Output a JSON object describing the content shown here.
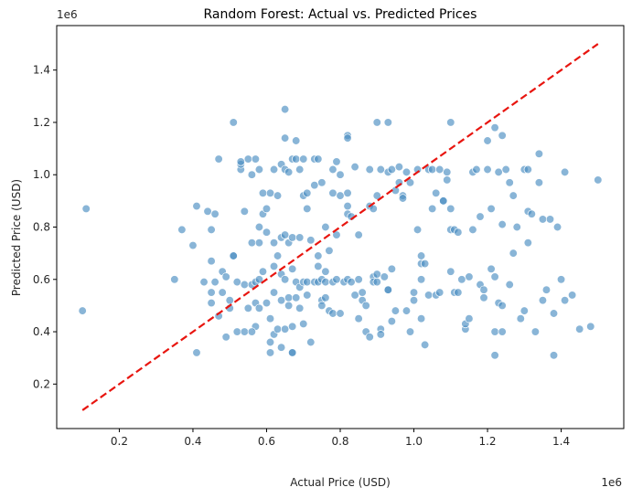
{
  "chart_data": {
    "type": "scatter",
    "title": "Random Forest: Actual vs. Predicted Prices",
    "xlabel": "Actual Price (USD)",
    "ylabel": "Predicted Price (USD)",
    "x_offset_label": "1e6",
    "y_offset_label": "1e6",
    "xlim": [
      0.03,
      1.57
    ],
    "ylim": [
      0.03,
      1.57
    ],
    "x_ticks": [
      0.2,
      0.4,
      0.6,
      0.8,
      1.0,
      1.2,
      1.4
    ],
    "x_tick_labels": [
      "0.2",
      "0.4",
      "0.6",
      "0.8",
      "1.0",
      "1.2",
      "1.4"
    ],
    "y_ticks": [
      0.2,
      0.4,
      0.6,
      0.8,
      1.0,
      1.2,
      1.4
    ],
    "y_tick_labels": [
      "0.2",
      "0.4",
      "0.6",
      "0.8",
      "1.0",
      "1.2",
      "1.4"
    ],
    "grid": false,
    "legend": "none",
    "point_color": "#4a8ec2",
    "line_color": "#e8150f",
    "reference_line": {
      "x": [
        0.1,
        1.5
      ],
      "y": [
        0.1,
        1.5
      ]
    },
    "points": [
      [
        0.1,
        0.48
      ],
      [
        0.11,
        0.87
      ],
      [
        0.35,
        0.6
      ],
      [
        0.37,
        0.79
      ],
      [
        0.4,
        0.73
      ],
      [
        0.41,
        0.32
      ],
      [
        0.41,
        0.88
      ],
      [
        0.43,
        0.59
      ],
      [
        0.44,
        0.86
      ],
      [
        0.45,
        0.79
      ],
      [
        0.45,
        0.67
      ],
      [
        0.45,
        0.55
      ],
      [
        0.45,
        0.51
      ],
      [
        0.46,
        0.85
      ],
      [
        0.46,
        0.59
      ],
      [
        0.47,
        1.06
      ],
      [
        0.47,
        0.46
      ],
      [
        0.48,
        0.55
      ],
      [
        0.48,
        0.63
      ],
      [
        0.49,
        0.61
      ],
      [
        0.49,
        0.38
      ],
      [
        0.5,
        0.52
      ],
      [
        0.5,
        0.49
      ],
      [
        0.51,
        1.2
      ],
      [
        0.51,
        0.69
      ],
      [
        0.51,
        0.69
      ],
      [
        0.52,
        0.59
      ],
      [
        0.52,
        0.4
      ],
      [
        0.53,
        1.02
      ],
      [
        0.53,
        1.04
      ],
      [
        0.53,
        1.05
      ],
      [
        0.54,
        0.86
      ],
      [
        0.54,
        0.58
      ],
      [
        0.54,
        0.4
      ],
      [
        0.55,
        1.06
      ],
      [
        0.55,
        0.49
      ],
      [
        0.56,
        1.0
      ],
      [
        0.56,
        0.74
      ],
      [
        0.56,
        0.58
      ],
      [
        0.57,
        1.06
      ],
      [
        0.57,
        0.51
      ],
      [
        0.57,
        0.42
      ],
      [
        0.57,
        0.59
      ],
      [
        0.58,
        1.02
      ],
      [
        0.58,
        0.8
      ],
      [
        0.58,
        0.74
      ],
      [
        0.58,
        0.6
      ],
      [
        0.58,
        0.49
      ],
      [
        0.59,
        0.93
      ],
      [
        0.59,
        0.85
      ],
      [
        0.59,
        0.63
      ],
      [
        0.6,
        0.87
      ],
      [
        0.6,
        0.78
      ],
      [
        0.6,
        0.51
      ],
      [
        0.61,
        0.93
      ],
      [
        0.61,
        0.45
      ],
      [
        0.61,
        0.32
      ],
      [
        0.61,
        0.36
      ],
      [
        0.62,
        1.02
      ],
      [
        0.62,
        0.74
      ],
      [
        0.62,
        0.65
      ],
      [
        0.62,
        0.55
      ],
      [
        0.62,
        0.39
      ],
      [
        0.63,
        0.92
      ],
      [
        0.63,
        0.69
      ],
      [
        0.63,
        0.41
      ],
      [
        0.64,
        1.04
      ],
      [
        0.64,
        0.76
      ],
      [
        0.64,
        0.62
      ],
      [
        0.64,
        0.52
      ],
      [
        0.64,
        0.34
      ],
      [
        0.65,
        1.25
      ],
      [
        0.65,
        1.14
      ],
      [
        0.65,
        1.02
      ],
      [
        0.65,
        0.77
      ],
      [
        0.65,
        0.6
      ],
      [
        0.65,
        0.41
      ],
      [
        0.66,
        1.01
      ],
      [
        0.66,
        0.74
      ],
      [
        0.66,
        0.53
      ],
      [
        0.66,
        0.5
      ],
      [
        0.67,
        1.06
      ],
      [
        0.67,
        0.76
      ],
      [
        0.67,
        0.64
      ],
      [
        0.67,
        0.42
      ],
      [
        0.67,
        0.32
      ],
      [
        0.68,
        1.13
      ],
      [
        0.68,
        1.06
      ],
      [
        0.68,
        0.59
      ],
      [
        0.68,
        0.53
      ],
      [
        0.69,
        1.02
      ],
      [
        0.69,
        0.76
      ],
      [
        0.69,
        0.57
      ],
      [
        0.69,
        0.49
      ],
      [
        0.7,
        1.06
      ],
      [
        0.7,
        0.92
      ],
      [
        0.7,
        0.59
      ],
      [
        0.7,
        0.43
      ],
      [
        0.71,
        0.93
      ],
      [
        0.71,
        0.87
      ],
      [
        0.71,
        0.59
      ],
      [
        0.71,
        0.54
      ],
      [
        0.72,
        0.36
      ],
      [
        0.72,
        0.75
      ],
      [
        0.73,
        1.06
      ],
      [
        0.73,
        0.96
      ],
      [
        0.73,
        0.59
      ],
      [
        0.74,
        1.06
      ],
      [
        0.74,
        0.69
      ],
      [
        0.74,
        0.65
      ],
      [
        0.74,
        0.59
      ],
      [
        0.75,
        0.97
      ],
      [
        0.75,
        0.6
      ],
      [
        0.75,
        0.52
      ],
      [
        0.75,
        0.5
      ],
      [
        0.76,
        0.8
      ],
      [
        0.76,
        0.63
      ],
      [
        0.76,
        0.59
      ],
      [
        0.76,
        0.53
      ],
      [
        0.77,
        0.71
      ],
      [
        0.77,
        0.48
      ],
      [
        0.78,
        1.02
      ],
      [
        0.78,
        0.93
      ],
      [
        0.78,
        0.59
      ],
      [
        0.78,
        0.47
      ],
      [
        0.79,
        1.05
      ],
      [
        0.79,
        0.77
      ],
      [
        0.79,
        0.6
      ],
      [
        0.8,
        1.0
      ],
      [
        0.8,
        0.92
      ],
      [
        0.8,
        0.47
      ],
      [
        0.81,
        0.59
      ],
      [
        0.82,
        1.15
      ],
      [
        0.82,
        1.14
      ],
      [
        0.82,
        0.93
      ],
      [
        0.82,
        0.88
      ],
      [
        0.82,
        0.85
      ],
      [
        0.82,
        0.6
      ],
      [
        0.83,
        0.59
      ],
      [
        0.83,
        0.84
      ],
      [
        0.84,
        1.03
      ],
      [
        0.84,
        0.54
      ],
      [
        0.85,
        0.77
      ],
      [
        0.85,
        0.6
      ],
      [
        0.85,
        0.45
      ],
      [
        0.86,
        0.55
      ],
      [
        0.86,
        0.52
      ],
      [
        0.87,
        0.5
      ],
      [
        0.87,
        0.4
      ],
      [
        0.88,
        1.02
      ],
      [
        0.88,
        0.88
      ],
      [
        0.88,
        0.38
      ],
      [
        0.89,
        0.87
      ],
      [
        0.89,
        0.61
      ],
      [
        0.89,
        0.59
      ],
      [
        0.9,
        1.2
      ],
      [
        0.9,
        0.92
      ],
      [
        0.9,
        0.62
      ],
      [
        0.9,
        0.59
      ],
      [
        0.91,
        1.02
      ],
      [
        0.91,
        0.41
      ],
      [
        0.91,
        0.39
      ],
      [
        0.92,
        0.61
      ],
      [
        0.93,
        1.2
      ],
      [
        0.93,
        1.01
      ],
      [
        0.93,
        0.56
      ],
      [
        0.93,
        0.56
      ],
      [
        0.94,
        1.02
      ],
      [
        0.94,
        0.64
      ],
      [
        0.94,
        0.44
      ],
      [
        0.95,
        0.94
      ],
      [
        0.95,
        0.48
      ],
      [
        0.96,
        1.03
      ],
      [
        0.96,
        0.97
      ],
      [
        0.97,
        0.92
      ],
      [
        0.97,
        0.91
      ],
      [
        0.98,
        1.01
      ],
      [
        0.98,
        0.48
      ],
      [
        0.99,
        0.97
      ],
      [
        0.99,
        0.4
      ],
      [
        1.0,
        0.55
      ],
      [
        1.0,
        0.52
      ],
      [
        1.01,
        1.02
      ],
      [
        1.01,
        0.79
      ],
      [
        1.02,
        0.66
      ],
      [
        1.02,
        0.6
      ],
      [
        1.02,
        0.69
      ],
      [
        1.02,
        0.45
      ],
      [
        1.03,
        0.66
      ],
      [
        1.03,
        0.35
      ],
      [
        1.04,
        1.02
      ],
      [
        1.04,
        0.54
      ],
      [
        1.05,
        1.02
      ],
      [
        1.05,
        0.87
      ],
      [
        1.06,
        0.93
      ],
      [
        1.06,
        0.54
      ],
      [
        1.07,
        1.02
      ],
      [
        1.07,
        0.55
      ],
      [
        1.08,
        0.9
      ],
      [
        1.08,
        0.9
      ],
      [
        1.09,
        1.01
      ],
      [
        1.09,
        0.98
      ],
      [
        1.1,
        1.2
      ],
      [
        1.1,
        0.87
      ],
      [
        1.1,
        0.79
      ],
      [
        1.1,
        0.63
      ],
      [
        1.11,
        0.79
      ],
      [
        1.11,
        0.55
      ],
      [
        1.12,
        0.78
      ],
      [
        1.12,
        0.55
      ],
      [
        1.14,
        0.41
      ],
      [
        1.14,
        0.43
      ],
      [
        1.15,
        0.61
      ],
      [
        1.15,
        0.45
      ],
      [
        1.16,
        1.01
      ],
      [
        1.16,
        0.79
      ],
      [
        1.17,
        1.02
      ],
      [
        1.18,
        0.84
      ],
      [
        1.18,
        0.58
      ],
      [
        1.19,
        0.53
      ],
      [
        1.2,
        1.13
      ],
      [
        1.2,
        1.02
      ],
      [
        1.21,
        0.87
      ],
      [
        1.21,
        0.64
      ],
      [
        1.22,
        1.18
      ],
      [
        1.22,
        0.61
      ],
      [
        1.22,
        0.4
      ],
      [
        1.22,
        0.31
      ],
      [
        1.23,
        1.01
      ],
      [
        1.23,
        0.51
      ],
      [
        1.24,
        1.15
      ],
      [
        1.24,
        0.81
      ],
      [
        1.24,
        0.5
      ],
      [
        1.24,
        0.4
      ],
      [
        1.25,
        1.02
      ],
      [
        1.26,
        0.97
      ],
      [
        1.27,
        0.92
      ],
      [
        1.27,
        0.7
      ],
      [
        1.28,
        0.8
      ],
      [
        1.29,
        0.45
      ],
      [
        1.3,
        1.02
      ],
      [
        1.3,
        0.48
      ],
      [
        1.31,
        1.02
      ],
      [
        1.31,
        0.86
      ],
      [
        1.31,
        0.74
      ],
      [
        1.32,
        0.85
      ],
      [
        1.33,
        0.4
      ],
      [
        1.34,
        1.08
      ],
      [
        1.34,
        0.97
      ],
      [
        1.35,
        0.83
      ],
      [
        1.35,
        0.52
      ],
      [
        1.37,
        0.83
      ],
      [
        1.38,
        0.47
      ],
      [
        1.38,
        0.31
      ],
      [
        1.39,
        0.8
      ],
      [
        1.4,
        0.6
      ],
      [
        1.41,
        0.52
      ],
      [
        1.41,
        1.01
      ],
      [
        1.43,
        0.54
      ],
      [
        1.45,
        0.41
      ],
      [
        1.48,
        0.42
      ],
      [
        1.5,
        0.98
      ],
      [
        1.36,
        0.56
      ],
      [
        1.26,
        0.58
      ],
      [
        1.19,
        0.56
      ],
      [
        1.13,
        0.6
      ],
      [
        0.56,
        0.4
      ],
      [
        0.67,
        0.32
      ]
    ]
  }
}
